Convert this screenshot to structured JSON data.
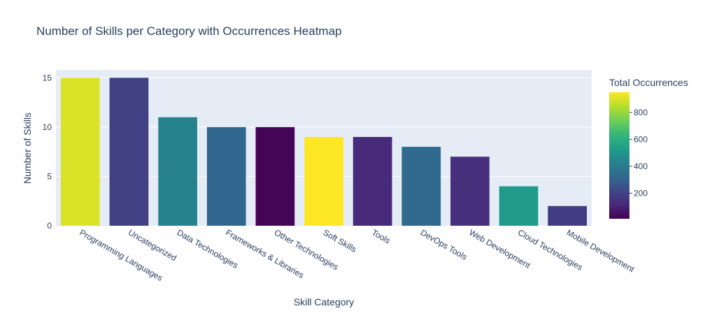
{
  "chart_data": {
    "type": "bar",
    "title": "Number of Skills per Category with Occurrences Heatmap",
    "xlabel": "Skill Category",
    "ylabel": "Number of Skills",
    "ylim": [
      0,
      15.8
    ],
    "yticks": [
      0,
      5,
      10,
      15
    ],
    "categories": [
      "Programming Languages",
      "Uncategorized",
      "Data Technologies",
      "Frameworks & Libraries",
      "Other Technologies",
      "Soft Skills",
      "Tools",
      "DevOps Tools",
      "Web Development",
      "Cloud Technologies",
      "Mobile Development"
    ],
    "values": [
      15,
      15,
      11,
      10,
      10,
      9,
      9,
      8,
      7,
      4,
      2
    ],
    "color_values": [
      900,
      190,
      430,
      320,
      20,
      950,
      120,
      330,
      140,
      520,
      180
    ],
    "colorbar": {
      "title": "Total Occurrences",
      "range": [
        10,
        950
      ],
      "ticks": [
        200,
        400,
        600,
        800
      ],
      "colorscale": "Viridis"
    },
    "grid": true,
    "legend": "colorbar-right"
  }
}
